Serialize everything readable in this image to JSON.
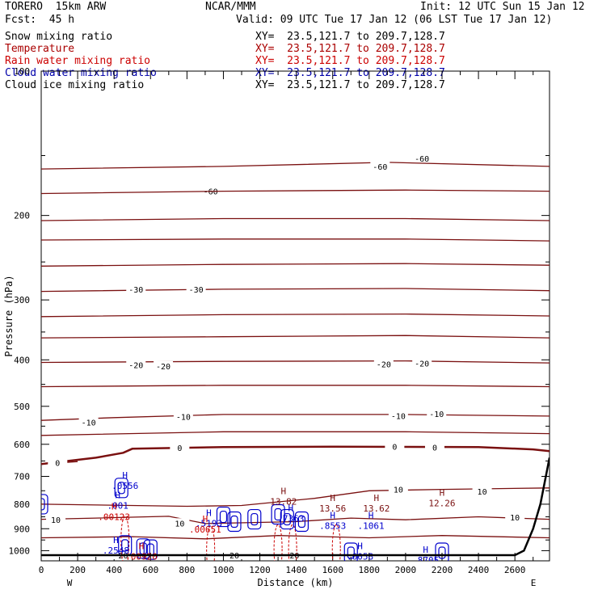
{
  "header": {
    "model": "TORERO  15km ARW",
    "center": "NCAR/MMM",
    "init": "Init: 12 UTC Sun 15 Jan 12",
    "fcst": "Fcst:  45 h",
    "valid": "Valid: 09 UTC Tue 17 Jan 12 (06 LST Tue 17 Jan 12)"
  },
  "fields": [
    {
      "name": "Snow mixing ratio",
      "color": "#000000",
      "xy": "XY=  23.5,121.7 to 209.7,128.7"
    },
    {
      "name": "Temperature",
      "color": "#aa0000",
      "xy": "XY=  23.5,121.7 to 209.7,128.7"
    },
    {
      "name": "Rain water mixing ratio",
      "color": "#cc0000",
      "xy": "XY=  23.5,121.7 to 209.7,128.7"
    },
    {
      "name": "Cloud water mixing ratio",
      "color": "#0000aa",
      "xy": "XY=  23.5,121.7 to 209.7,128.7"
    },
    {
      "name": "Cloud ice mixing ratio",
      "color": "#000000",
      "xy": "XY=  23.5,121.7 to 209.7,128.7"
    }
  ],
  "chart_data": {
    "type": "cross-section",
    "ylabel": "Pressure (hPa)",
    "xlabel": "Distance (km)",
    "xlim": [
      0,
      2790
    ],
    "ylim": [
      100,
      1050
    ],
    "y_scale": "log",
    "x_ticks": [
      0,
      200,
      400,
      600,
      800,
      1000,
      1200,
      1400,
      1600,
      1800,
      2000,
      2200,
      2400,
      2600
    ],
    "y_ticks": [
      200,
      300,
      400,
      500,
      600,
      700,
      800,
      900,
      1000
    ],
    "y_tick_labels": [
      "200",
      "300",
      "400",
      "500",
      "600",
      "700",
      "800",
      "900",
      "1000"
    ],
    "top_label": "100",
    "x_end_labels": {
      "left": "W",
      "right": "E"
    },
    "colors": {
      "temperature": "#7a1010",
      "rain": "#cc0000",
      "cloud_water": "#0000cc",
      "terrain": "#000000"
    },
    "temperature_contours": [
      {
        "label": "-60",
        "points": [
          [
            0,
            160
          ],
          [
            1000,
            158
          ],
          [
            1900,
            155
          ],
          [
            2790,
            158
          ]
        ],
        "labels_at": [
          [
            930,
            178
          ],
          [
            1860,
            158
          ],
          [
            2090,
            152
          ]
        ]
      },
      {
        "label": "",
        "points": [
          [
            0,
            180
          ],
          [
            1000,
            178
          ],
          [
            2000,
            177
          ],
          [
            2790,
            178
          ]
        ],
        "labels_at": []
      },
      {
        "label": "",
        "points": [
          [
            0,
            205
          ],
          [
            1000,
            203
          ],
          [
            2000,
            203
          ],
          [
            2790,
            205
          ]
        ],
        "labels_at": []
      },
      {
        "label": "",
        "points": [
          [
            0,
            225
          ],
          [
            1000,
            224
          ],
          [
            2000,
            224
          ],
          [
            2790,
            226
          ]
        ],
        "labels_at": []
      },
      {
        "label": "",
        "points": [
          [
            0,
            255
          ],
          [
            1000,
            253
          ],
          [
            2000,
            252
          ],
          [
            2790,
            254
          ]
        ],
        "labels_at": []
      },
      {
        "label": "-30",
        "points": [
          [
            0,
            288
          ],
          [
            1000,
            285
          ],
          [
            2000,
            284
          ],
          [
            2790,
            287
          ]
        ],
        "labels_at": [
          [
            520,
            285
          ],
          [
            850,
            285
          ]
        ]
      },
      {
        "label": "",
        "points": [
          [
            0,
            325
          ],
          [
            1000,
            322
          ],
          [
            2000,
            321
          ],
          [
            2790,
            324
          ]
        ],
        "labels_at": []
      },
      {
        "label": "",
        "points": [
          [
            0,
            360
          ],
          [
            1000,
            358
          ],
          [
            2000,
            356
          ],
          [
            2790,
            360
          ]
        ],
        "labels_at": []
      },
      {
        "label": "-20",
        "points": [
          [
            0,
            405
          ],
          [
            1000,
            403
          ],
          [
            2000,
            402
          ],
          [
            2790,
            406
          ]
        ],
        "labels_at": [
          [
            520,
            410
          ],
          [
            670,
            412
          ],
          [
            1880,
            408
          ],
          [
            2090,
            407
          ]
        ]
      },
      {
        "label": "",
        "points": [
          [
            0,
            455
          ],
          [
            1000,
            452
          ],
          [
            2000,
            452
          ],
          [
            2790,
            455
          ]
        ],
        "labels_at": []
      },
      {
        "label": "-10",
        "points": [
          [
            0,
            535
          ],
          [
            400,
            528
          ],
          [
            1000,
            520
          ],
          [
            2000,
            520
          ],
          [
            2790,
            524
          ]
        ],
        "labels_at": [
          [
            260,
            540
          ],
          [
            780,
            525
          ],
          [
            1960,
            523
          ],
          [
            2170,
            518
          ]
        ]
      },
      {
        "label": "",
        "points": [
          [
            0,
            575
          ],
          [
            1000,
            565
          ],
          [
            2000,
            565
          ],
          [
            2790,
            570
          ]
        ],
        "labels_at": []
      },
      {
        "label": "0",
        "points": [
          [
            0,
            660
          ],
          [
            300,
            640
          ],
          [
            450,
            625
          ],
          [
            500,
            613
          ],
          [
            1000,
            608
          ],
          [
            1600,
            607
          ],
          [
            2400,
            608
          ],
          [
            2700,
            615
          ],
          [
            2790,
            620
          ]
        ],
        "labels_at": [
          [
            760,
            610
          ],
          [
            1940,
            606
          ],
          [
            2160,
            609
          ]
        ],
        "bold": true
      },
      {
        "label": "0",
        "points": [
          [
            0,
            660
          ],
          [
            200,
            652
          ]
        ],
        "labels_at": [
          [
            90,
            655
          ]
        ]
      },
      {
        "label": "10",
        "points": [
          [
            0,
            860
          ],
          [
            300,
            855
          ],
          [
            700,
            848
          ],
          [
            900,
            878
          ],
          [
            1400,
            870
          ],
          [
            1700,
            855
          ],
          [
            2000,
            862
          ],
          [
            2400,
            850
          ],
          [
            2790,
            860
          ]
        ],
        "labels_at": [
          [
            80,
            862
          ],
          [
            760,
            876
          ],
          [
            2600,
            852
          ]
        ]
      },
      {
        "label": "10",
        "points": [
          [
            0,
            800
          ],
          [
            800,
            808
          ],
          [
            1100,
            805
          ],
          [
            1500,
            778
          ],
          [
            1800,
            750
          ],
          [
            2200,
            745
          ],
          [
            2790,
            740
          ]
        ],
        "labels_at": [
          [
            1960,
            745
          ],
          [
            2420,
            752
          ]
        ]
      },
      {
        "label": "20",
        "points": [
          [
            0,
            940
          ],
          [
            500,
            935
          ],
          [
            900,
            945
          ],
          [
            1300,
            930
          ],
          [
            1800,
            940
          ],
          [
            2200,
            930
          ],
          [
            2790,
            940
          ]
        ],
        "labels_at": [
          [
            450,
            1022
          ],
          [
            1060,
            1022
          ],
          [
            1390,
            1022
          ]
        ]
      }
    ],
    "labels_H": [
      {
        "x": 460,
        "p": 718,
        "text": ".0556",
        "color": "#0000cc"
      },
      {
        "x": 420,
        "p": 790,
        "text": ".001",
        "color": "#0000cc"
      },
      {
        "x": 400,
        "p": 833,
        "text": ".00123",
        "color": "#cc0000"
      },
      {
        "x": 1330,
        "p": 775,
        "text": "13.82",
        "color": "#7a1010"
      },
      {
        "x": 1600,
        "p": 800,
        "text": "13.56",
        "color": "#7a1010"
      },
      {
        "x": 1840,
        "p": 800,
        "text": "13.62",
        "color": "#7a1010"
      },
      {
        "x": 2200,
        "p": 780,
        "text": "12.26",
        "color": "#7a1010"
      },
      {
        "x": 920,
        "p": 860,
        "text": ".5193",
        "color": "#0000cc"
      },
      {
        "x": 900,
        "p": 885,
        "text": ".00651",
        "color": "#cc0000"
      },
      {
        "x": 1370,
        "p": 840,
        "text": ".7363",
        "color": "#0000cc"
      },
      {
        "x": 1600,
        "p": 870,
        "text": ".8553",
        "color": "#0000cc"
      },
      {
        "x": 1810,
        "p": 870,
        "text": ".1061",
        "color": "#0000cc"
      },
      {
        "x": 410,
        "p": 980,
        "text": ".2548",
        "color": "#0000cc"
      },
      {
        "x": 550,
        "p": 1008,
        "text": ".00920",
        "color": "#cc0000"
      },
      {
        "x": 1750,
        "p": 1008,
        "text": ".6058",
        "color": "#0000cc"
      },
      {
        "x": 2110,
        "p": 1025,
        "text": ".8705",
        "color": "#0000cc"
      }
    ],
    "rain_blobs": [
      [
        460,
        865
      ],
      [
        930,
        905
      ],
      [
        1300,
        900
      ],
      [
        1380,
        900
      ],
      [
        1620,
        900
      ]
    ],
    "cloud_blobs": [
      [
        0,
        800
      ],
      [
        440,
        740
      ],
      [
        1000,
        850
      ],
      [
        1060,
        870
      ],
      [
        1170,
        860
      ],
      [
        1300,
        840
      ],
      [
        1350,
        860
      ],
      [
        1430,
        870
      ],
      [
        460,
        975
      ],
      [
        560,
        990
      ],
      [
        600,
        995
      ],
      [
        1700,
        1010
      ],
      [
        2200,
        1010
      ]
    ],
    "terrain": [
      [
        0,
        1022
      ],
      [
        2600,
        1022
      ],
      [
        2650,
        1000
      ],
      [
        2700,
        900
      ],
      [
        2740,
        800
      ],
      [
        2790,
        640
      ]
    ]
  }
}
